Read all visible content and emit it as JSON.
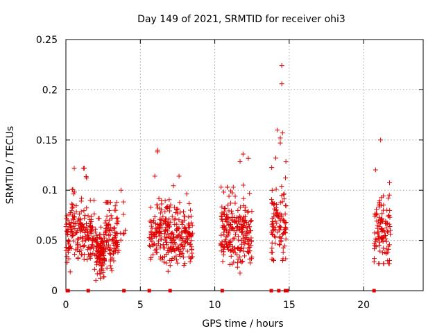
{
  "chart_data": {
    "type": "scatter",
    "title": "Day 149 of 2021, SRMTID for receiver ohi3",
    "xlabel": "GPS time / hours",
    "ylabel": "SRMTID / TECUs",
    "xlim": [
      0,
      24
    ],
    "ylim": [
      0,
      0.25
    ],
    "grid": true,
    "x_ticks": [
      "0",
      "5",
      "10",
      "15",
      "20"
    ],
    "x_tick_values": [
      0,
      5,
      10,
      15,
      20
    ],
    "y_ticks": [
      "0",
      "0.05",
      "0.1",
      "0.15",
      "0.2",
      "0.25"
    ],
    "y_tick_values": [
      0,
      0.05,
      0.1,
      0.15,
      0.2,
      0.25
    ],
    "series": [
      {
        "name": "SRMTID",
        "marker": "plus",
        "color": "#e00000",
        "clusters": [
          {
            "x_range": [
              0.0,
              1.4
            ],
            "count": 140,
            "mean": 0.058,
            "spread": 0.016,
            "min": 0.015,
            "max": 0.122
          },
          {
            "x_range": [
              1.4,
              2.0
            ],
            "count": 55,
            "mean": 0.055,
            "spread": 0.013,
            "min": 0.02,
            "max": 0.09
          },
          {
            "x_range": [
              2.0,
              2.6
            ],
            "count": 110,
            "mean": 0.037,
            "spread": 0.011,
            "min": 0.01,
            "max": 0.072
          },
          {
            "x_range": [
              2.6,
              3.5
            ],
            "count": 95,
            "mean": 0.052,
            "spread": 0.013,
            "min": 0.02,
            "max": 0.088
          },
          {
            "x_range": [
              3.5,
              4.0
            ],
            "count": 8,
            "mean": 0.055,
            "spread": 0.02,
            "min": 0.04,
            "max": 0.1
          },
          {
            "x_range": [
              5.6,
              7.0
            ],
            "count": 140,
            "mean": 0.056,
            "spread": 0.016,
            "min": 0.017,
            "max": 0.14
          },
          {
            "x_range": [
              7.0,
              8.5
            ],
            "count": 150,
            "mean": 0.053,
            "spread": 0.014,
            "min": 0.022,
            "max": 0.114
          },
          {
            "x_range": [
              10.4,
              11.5
            ],
            "count": 120,
            "mean": 0.058,
            "spread": 0.014,
            "min": 0.015,
            "max": 0.103
          },
          {
            "x_range": [
              11.5,
              12.5
            ],
            "count": 110,
            "mean": 0.055,
            "spread": 0.016,
            "min": 0.013,
            "max": 0.136
          },
          {
            "x_range": [
              13.8,
              14.8
            ],
            "count": 100,
            "mean": 0.068,
            "spread": 0.019,
            "min": 0.03,
            "max": 0.16
          },
          {
            "x_range": [
              20.7,
              21.8
            ],
            "count": 110,
            "mean": 0.058,
            "spread": 0.018,
            "min": 0.027,
            "max": 0.15
          }
        ],
        "outliers": [
          {
            "x": 14.5,
            "y": 0.224
          },
          {
            "x": 14.5,
            "y": 0.206
          },
          {
            "x": 14.55,
            "y": 0.157
          },
          {
            "x": 14.4,
            "y": 0.152
          },
          {
            "x": 14.4,
            "y": 0.147
          },
          {
            "x": 14.1,
            "y": 0.132
          }
        ]
      }
    ],
    "zero_line_markers": [
      0.1,
      0.15,
      1.5,
      3.9,
      5.6,
      7.0,
      10.5,
      13.8,
      14.3,
      14.75,
      14.85,
      20.7
    ]
  }
}
